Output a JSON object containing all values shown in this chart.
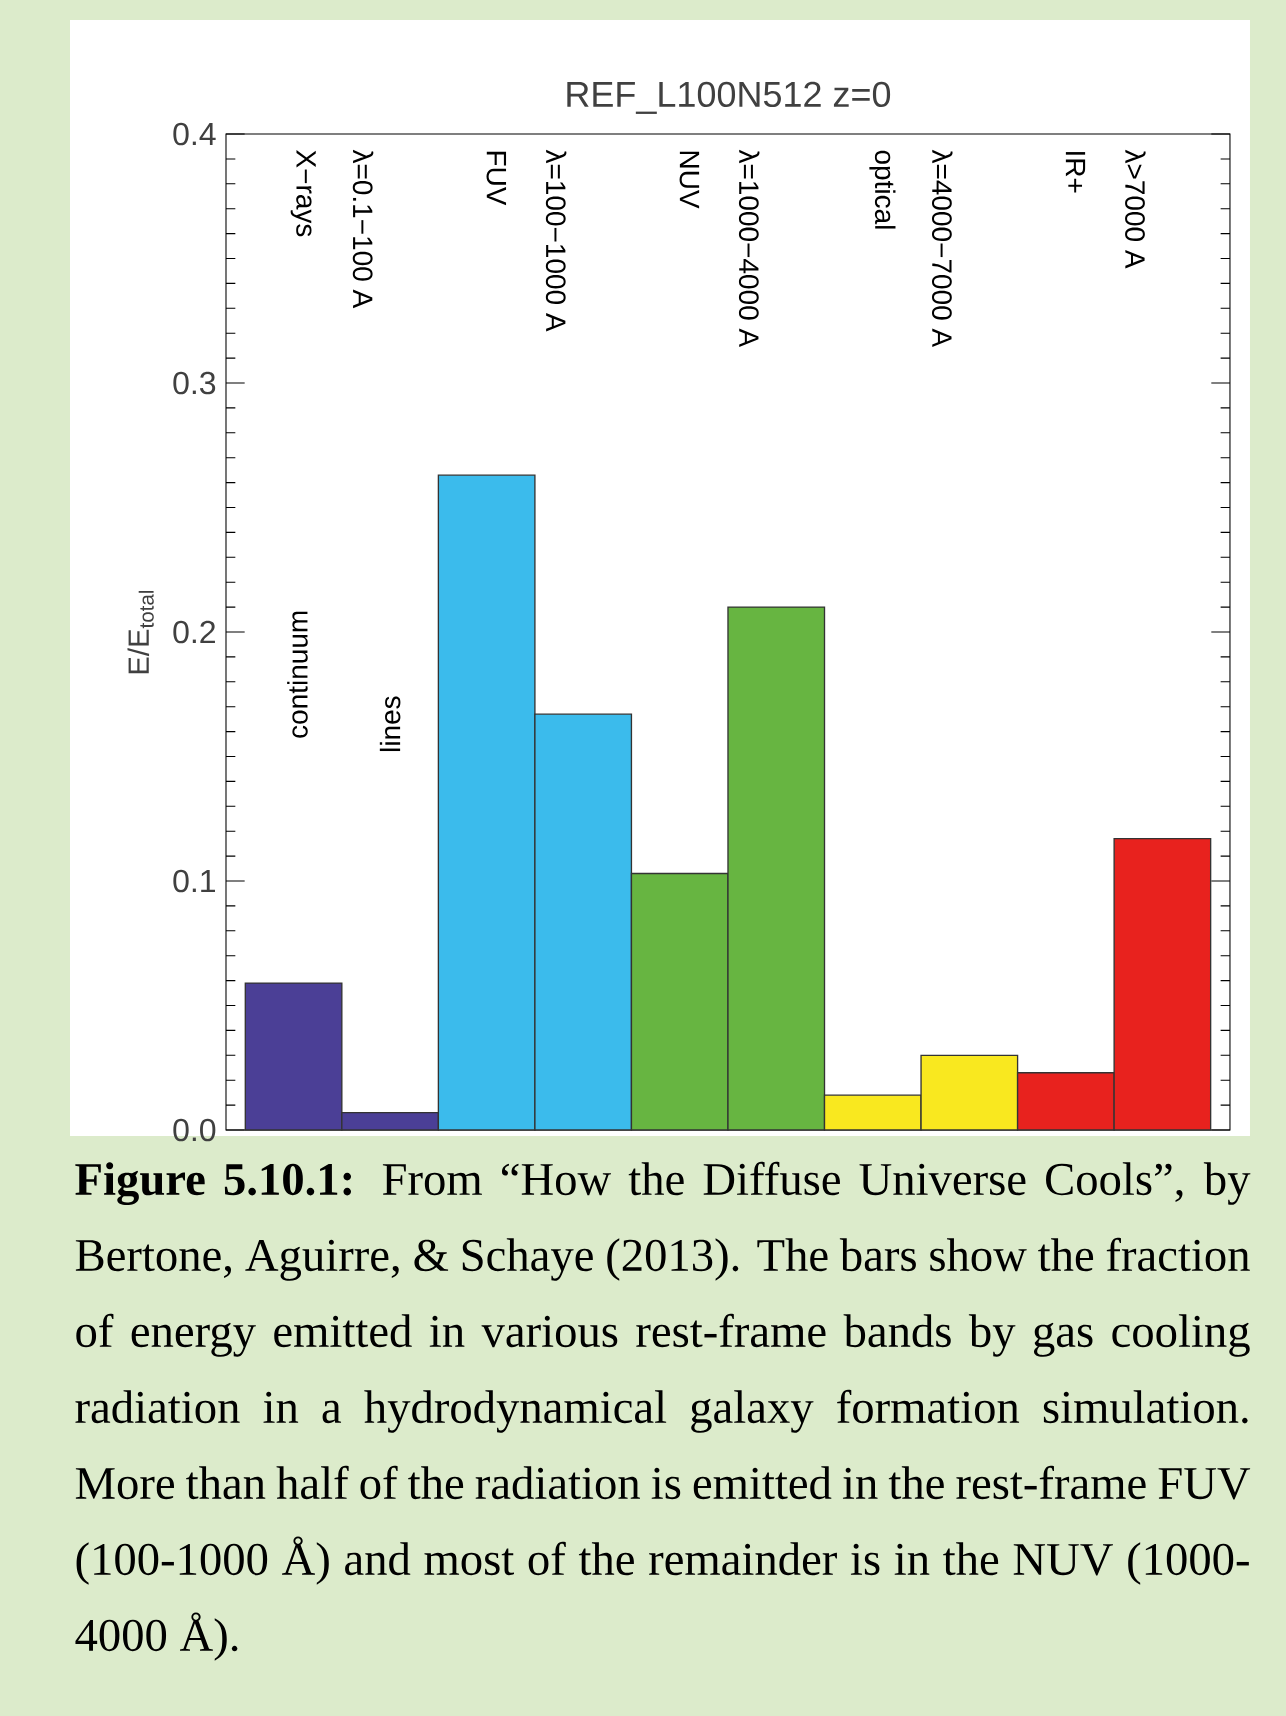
{
  "chart_data": {
    "type": "bar",
    "title": "REF_L100N512  z=0",
    "ylabel": "E/E$_{total}$",
    "categories": [
      null,
      null,
      null,
      null,
      null,
      null,
      null,
      null,
      null,
      null
    ],
    "values": [
      0.059,
      0.007,
      0.263,
      0.167,
      0.103,
      0.21,
      0.014,
      0.03,
      0.023,
      0.117
    ],
    "colors": [
      "#4b3f96",
      "#4b3f96",
      "#3bbbec",
      "#3bbbec",
      "#67b541",
      "#67b541",
      "#f9e81f",
      "#f9e81f",
      "#e8221e",
      "#e8221e"
    ],
    "ylim": [
      0,
      0.4
    ],
    "yticks": [
      {
        "value": 0,
        "label": "0.0"
      },
      0.1,
      0.2,
      0.3,
      0.4
    ],
    "tick_labels": "y",
    "annotations": [
      "X−rays",
      "λ=0.1−100 A",
      "FUV",
      "λ=100−1000 A",
      "NUV",
      "λ=1000−4000 A",
      "optical",
      "λ=4000−7000 A",
      "IR+",
      "λ>7000 A",
      "continuum",
      "lines",
      "**Figure 5.10.1:** From “How the Diffuse Universe Cools”, by Bertone, Aguirre, & Schaye (2013). The bars show the fraction of energy emitted in various rest-frame bands by gas cooling radiation in a hydrodynamical galaxy formation simulation. More than half of the radiation is emitted in the rest-frame FUV (100-1000 Å) and most of the remainder is in the NUV (1000-4000 Å)."
    ]
  }
}
